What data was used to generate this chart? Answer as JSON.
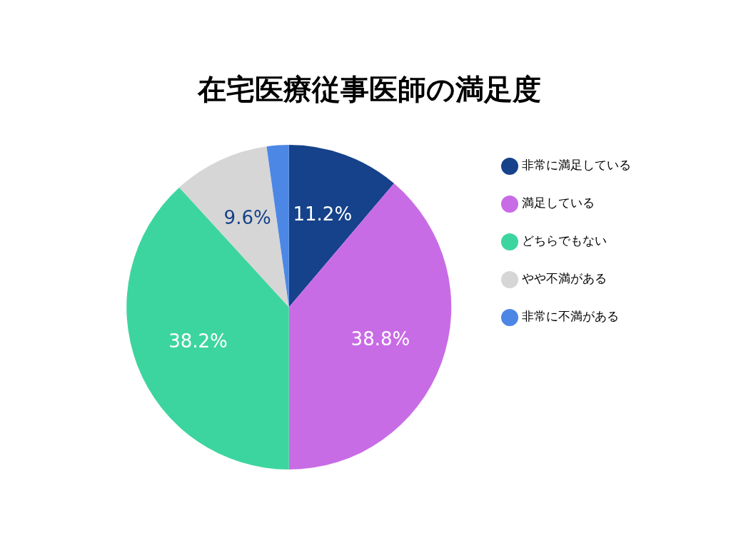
{
  "chart_data": {
    "type": "pie",
    "title": "在宅医療従事医師の満足度",
    "categories": [
      "非常に満足している",
      "満足している",
      "どちらでもない",
      "やや不満がある",
      "非常に不満がある"
    ],
    "values": [
      11.2,
      38.8,
      38.2,
      9.6,
      2.2
    ],
    "value_labels": [
      "11.2%",
      "38.8%",
      "38.2%",
      "9.6%",
      null
    ],
    "colors": [
      "#15428a",
      "#c86ce6",
      "#3dd59f",
      "#d6d6d6",
      "#4d87e6"
    ],
    "legend": "right"
  }
}
